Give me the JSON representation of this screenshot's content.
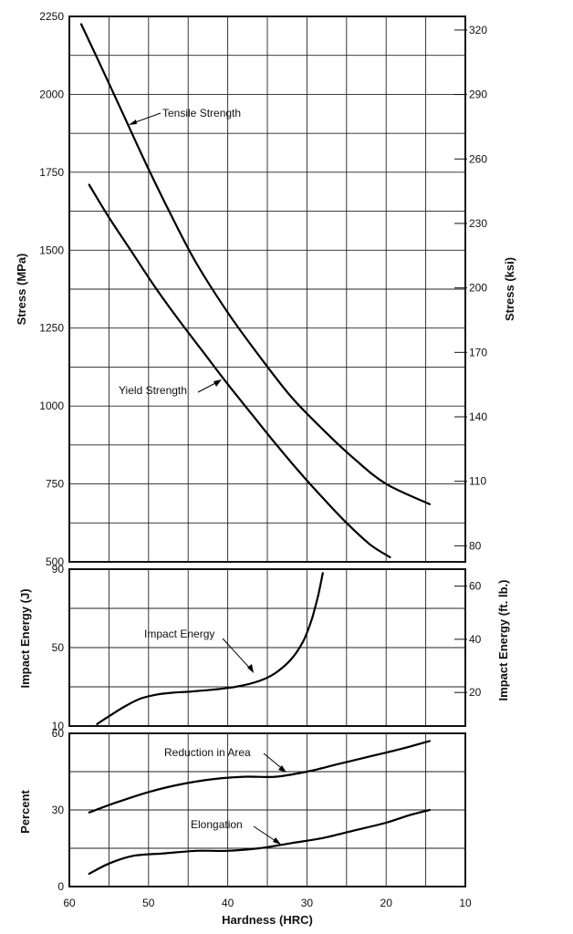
{
  "chart_data": [
    {
      "type": "line",
      "panel": "stress",
      "xlabel": "Hardness (HRC)",
      "ylabel": "Stress (MPa)",
      "y2label": "Stress (ksi)",
      "xlim": [
        60,
        10
      ],
      "ylim": [
        500,
        2250
      ],
      "x_ticks": [
        60,
        50,
        40,
        30,
        20,
        10
      ],
      "y_ticks": [
        500,
        750,
        1000,
        1250,
        1500,
        1750,
        2000,
        2250
      ],
      "y2_ticks": [
        80,
        110,
        140,
        170,
        200,
        230,
        260,
        290,
        320
      ],
      "grid": true,
      "series": [
        {
          "name": "Tensile Strength",
          "x": [
            58.5,
            56,
            53,
            50,
            47,
            44,
            40,
            36,
            32,
            28,
            24,
            20,
            14.5
          ],
          "y": [
            2225,
            2090,
            1925,
            1760,
            1605,
            1460,
            1300,
            1160,
            1030,
            925,
            830,
            750,
            685
          ]
        },
        {
          "name": "Yield Strength",
          "x": [
            57.5,
            55,
            52,
            49,
            46,
            43,
            40,
            37,
            34,
            31,
            28,
            25,
            22,
            19.5
          ],
          "y": [
            1710,
            1605,
            1490,
            1375,
            1270,
            1170,
            1070,
            975,
            880,
            790,
            705,
            625,
            555,
            515
          ]
        }
      ]
    },
    {
      "type": "line",
      "panel": "impact",
      "ylabel": "Impact Energy (J)",
      "y2label": "Impact Energy (ft. lb.)",
      "xlim": [
        60,
        10
      ],
      "ylim": [
        10,
        90
      ],
      "y_ticks": [
        10,
        50,
        90
      ],
      "y2_ticks": [
        20,
        40,
        60
      ],
      "grid": true,
      "series": [
        {
          "name": "Impact Energy",
          "x": [
            56.5,
            55,
            53,
            51,
            49,
            47,
            45,
            42,
            39,
            36,
            34,
            32,
            30.5,
            29.5,
            29,
            28.5,
            28
          ],
          "y": [
            11,
            15,
            20,
            24,
            26,
            27,
            27.5,
            28.5,
            30,
            33,
            37,
            44,
            53,
            63,
            70,
            78,
            88
          ]
        }
      ]
    },
    {
      "type": "line",
      "panel": "percent",
      "ylabel": "Percent",
      "xlim": [
        60,
        10
      ],
      "ylim": [
        0,
        60
      ],
      "y_ticks": [
        0,
        30,
        60
      ],
      "grid": true,
      "series": [
        {
          "name": "Reduction in Area",
          "x": [
            57.5,
            54,
            50,
            46,
            42,
            38,
            34,
            30,
            26,
            22,
            18,
            14.5
          ],
          "y": [
            29,
            33,
            37,
            40,
            42,
            43,
            43,
            45,
            48,
            51,
            54,
            57
          ]
        },
        {
          "name": "Elongation",
          "x": [
            57.5,
            55,
            52,
            48,
            44,
            40,
            36,
            32,
            28,
            24,
            20,
            17,
            14.5
          ],
          "y": [
            5,
            9,
            12,
            13,
            14,
            14,
            15,
            17,
            19,
            22,
            25,
            28,
            30
          ]
        }
      ]
    }
  ]
}
